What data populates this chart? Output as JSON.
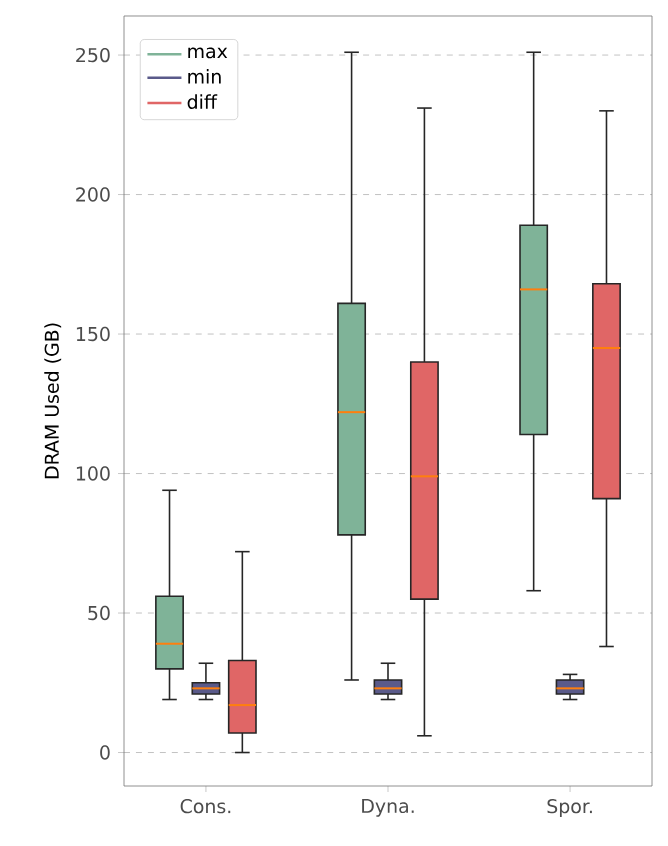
{
  "chart_data": {
    "type": "box",
    "ylabel": "DRAM Used (GB)",
    "categories": [
      "Cons.",
      "Dyna.",
      "Spor."
    ],
    "ylim": [
      -12,
      264
    ],
    "yticks": [
      0,
      50,
      100,
      150,
      200,
      250
    ],
    "grid": "y",
    "legend": "top left",
    "series": [
      {
        "name": "max",
        "color": "#7fb398",
        "boxes": [
          {
            "low": 19,
            "q1": 30,
            "median": 39,
            "q3": 56,
            "high": 94
          },
          {
            "low": 26,
            "q1": 78,
            "median": 122,
            "q3": 161,
            "high": 251
          },
          {
            "low": 58,
            "q1": 114,
            "median": 166,
            "q3": 189,
            "high": 251
          }
        ]
      },
      {
        "name": "min",
        "color": "#5a5a8a",
        "boxes": [
          {
            "low": 19,
            "q1": 21,
            "median": 23,
            "q3": 25,
            "high": 32
          },
          {
            "low": 19,
            "q1": 21,
            "median": 23,
            "q3": 26,
            "high": 32
          },
          {
            "low": 19,
            "q1": 21,
            "median": 23,
            "q3": 26,
            "high": 28
          }
        ]
      },
      {
        "name": "diff",
        "color": "#e06666",
        "boxes": [
          {
            "low": 0,
            "q1": 7,
            "median": 17,
            "q3": 33,
            "high": 72
          },
          {
            "low": 6,
            "q1": 55,
            "median": 99,
            "q3": 140,
            "high": 231
          },
          {
            "low": 38,
            "q1": 91,
            "median": 145,
            "q3": 168,
            "high": 230
          }
        ]
      }
    ]
  }
}
